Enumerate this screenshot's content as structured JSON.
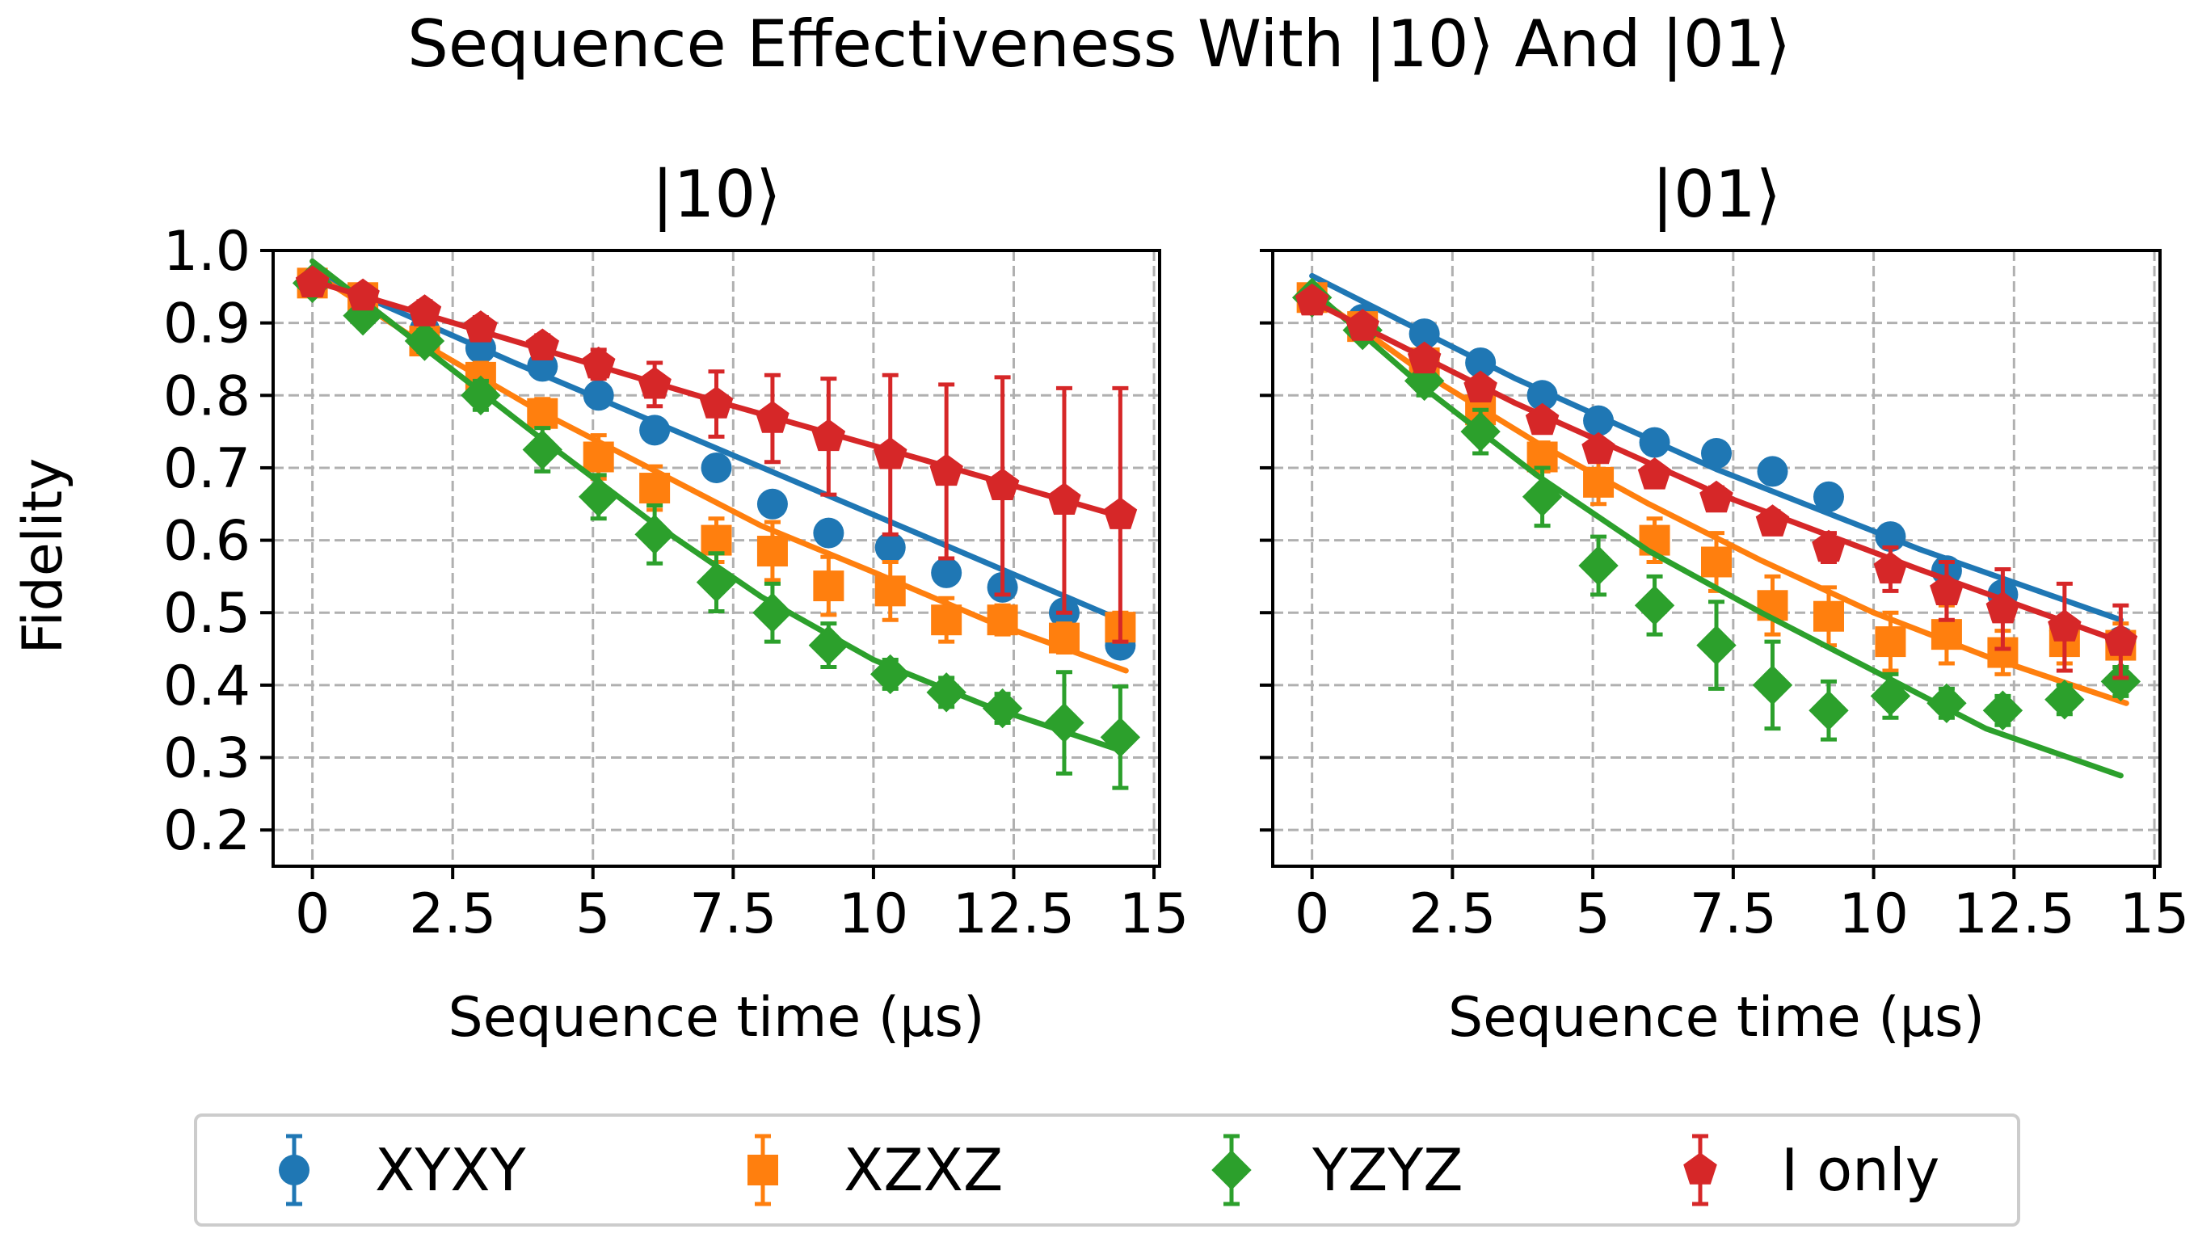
{
  "chart_data": {
    "type": "scatter",
    "title": "Sequence Effectiveness With |10⟩ And |01⟩",
    "ylabel": "Fidelity",
    "series_styles": [
      {
        "name": "XYXY",
        "color": "#1f77b4",
        "marker": "circle"
      },
      {
        "name": "XZXZ",
        "color": "#ff7f0e",
        "marker": "square"
      },
      {
        "name": "YZYZ",
        "color": "#2ca02c",
        "marker": "diamond"
      },
      {
        "name": "I only",
        "color": "#d62728",
        "marker": "pentagon"
      }
    ],
    "panels": [
      {
        "title": "|10⟩",
        "xlabel": "Sequence time (μs)",
        "xlim": [
          -0.7,
          15.1
        ],
        "ylim": [
          0.15,
          1.0
        ],
        "xticks": [
          0,
          2.5,
          5,
          7.5,
          10,
          12.5,
          15
        ],
        "xtick_labels": [
          "0",
          "2.5",
          "5",
          "7.5",
          "10",
          "12.5",
          "15"
        ],
        "yticks": [
          0.2,
          0.3,
          0.4,
          0.5,
          0.6,
          0.7,
          0.8,
          0.9,
          1.0
        ],
        "ytick_labels": [
          "0.2",
          "0.3",
          "0.4",
          "0.5",
          "0.6",
          "0.7",
          "0.8",
          "0.9",
          "1.0"
        ],
        "grid": true,
        "x": [
          0,
          0.9,
          2.0,
          3.0,
          4.1,
          5.1,
          6.1,
          7.2,
          8.2,
          9.2,
          10.3,
          11.3,
          12.3,
          13.4,
          14.4
        ],
        "series": [
          {
            "name": "XYXY",
            "y": [
              0.955,
              0.935,
              0.89,
              0.865,
              0.84,
              0.8,
              0.752,
              0.7,
              0.65,
              0.61,
              0.59,
              0.555,
              0.535,
              0.5,
              0.455
            ],
            "err": [
              0.005,
              0.005,
              0.008,
              0.008,
              0.008,
              0.008,
              0.01,
              0.01,
              0.01,
              0.01,
              0.012,
              0.012,
              0.012,
              0.012,
              0.012
            ],
            "fit": [
              [
                0,
                0.968
              ],
              [
                3.6,
                0.845
              ],
              [
                7.2,
                0.727
              ],
              [
                10.8,
                0.609
              ],
              [
                14.4,
                0.49
              ]
            ]
          },
          {
            "name": "XZXZ",
            "y": [
              0.955,
              0.935,
              0.875,
              0.825,
              0.775,
              0.715,
              0.672,
              0.6,
              0.585,
              0.537,
              0.53,
              0.49,
              0.49,
              0.465,
              0.48
            ],
            "err": [
              0.01,
              0.01,
              0.015,
              0.02,
              0.02,
              0.03,
              0.03,
              0.03,
              0.04,
              0.04,
              0.04,
              0.03,
              0.02,
              0.02,
              0.02
            ],
            "fit": [
              [
                0,
                0.97
              ],
              [
                2,
                0.87
              ],
              [
                4,
                0.78
              ],
              [
                6,
                0.7
              ],
              [
                8,
                0.62
              ],
              [
                10,
                0.556
              ],
              [
                12,
                0.49
              ],
              [
                14.5,
                0.42
              ]
            ]
          },
          {
            "name": "YZYZ",
            "y": [
              0.955,
              0.91,
              0.875,
              0.8,
              0.725,
              0.66,
              0.608,
              0.542,
              0.5,
              0.455,
              0.415,
              0.39,
              0.368,
              0.348,
              0.328
            ],
            "err": [
              0.01,
              0.01,
              0.015,
              0.02,
              0.03,
              0.03,
              0.04,
              0.04,
              0.04,
              0.03,
              0.02,
              0.02,
              0.02,
              0.07,
              0.07
            ],
            "fit": [
              [
                0,
                0.985
              ],
              [
                2,
                0.865
              ],
              [
                4,
                0.745
              ],
              [
                6,
                0.628
              ],
              [
                8,
                0.522
              ],
              [
                10,
                0.435
              ],
              [
                12,
                0.372
              ],
              [
                14.4,
                0.31
              ]
            ]
          },
          {
            "name": "I only",
            "y": [
              0.955,
              0.937,
              0.915,
              0.893,
              0.868,
              0.843,
              0.815,
              0.788,
              0.768,
              0.743,
              0.718,
              0.695,
              0.675,
              0.655,
              0.635
            ],
            "err": [
              0.01,
              0.01,
              0.015,
              0.015,
              0.015,
              0.02,
              0.03,
              0.045,
              0.06,
              0.08,
              0.11,
              0.12,
              0.15,
              0.155,
              0.175
            ],
            "fit": [
              [
                0,
                0.958
              ],
              [
                3.6,
                0.875
              ],
              [
                7.2,
                0.792
              ],
              [
                10.8,
                0.713
              ],
              [
                14.4,
                0.633
              ]
            ]
          }
        ]
      },
      {
        "title": "|01⟩",
        "xlabel": "Sequence time (μs)",
        "xlim": [
          -0.7,
          15.1
        ],
        "ylim": [
          0.15,
          1.0
        ],
        "xticks": [
          0,
          2.5,
          5,
          7.5,
          10,
          12.5,
          15
        ],
        "xtick_labels": [
          "0",
          "2.5",
          "5",
          "7.5",
          "10",
          "12.5",
          "15"
        ],
        "yticks": [
          0.2,
          0.3,
          0.4,
          0.5,
          0.6,
          0.7,
          0.8,
          0.9,
          1.0
        ],
        "ytick_labels": [
          "0.2",
          "0.3",
          "0.4",
          "0.5",
          "0.6",
          "0.7",
          "0.8",
          "0.9",
          "1.0"
        ],
        "grid": true,
        "x": [
          0,
          0.9,
          2.0,
          3.0,
          4.1,
          5.1,
          6.1,
          7.2,
          8.2,
          9.2,
          10.3,
          11.3,
          12.3,
          13.4,
          14.4
        ],
        "series": [
          {
            "name": "XYXY",
            "y": [
              0.935,
              0.905,
              0.885,
              0.845,
              0.8,
              0.765,
              0.735,
              0.72,
              0.695,
              0.66,
              0.605,
              0.558,
              0.525,
              0.475,
              0.46
            ],
            "err": [
              0.005,
              0.005,
              0.008,
              0.008,
              0.01,
              0.01,
              0.01,
              0.01,
              0.01,
              0.01,
              0.012,
              0.012,
              0.012,
              0.012,
              0.012
            ],
            "fit": [
              [
                0,
                0.965
              ],
              [
                3.6,
                0.824
              ],
              [
                7.2,
                0.698
              ],
              [
                10.8,
                0.588
              ],
              [
                14.4,
                0.49
              ]
            ]
          },
          {
            "name": "XZXZ",
            "y": [
              0.935,
              0.895,
              0.845,
              0.78,
              0.715,
              0.68,
              0.6,
              0.57,
              0.51,
              0.495,
              0.46,
              0.47,
              0.445,
              0.46,
              0.455
            ],
            "err": [
              0.01,
              0.01,
              0.015,
              0.02,
              0.02,
              0.03,
              0.03,
              0.04,
              0.04,
              0.04,
              0.04,
              0.04,
              0.03,
              0.03,
              0.03
            ],
            "fit": [
              [
                0,
                0.94
              ],
              [
                2,
                0.83
              ],
              [
                4,
                0.735
              ],
              [
                6,
                0.65
              ],
              [
                8,
                0.572
              ],
              [
                10,
                0.5
              ],
              [
                12,
                0.44
              ],
              [
                14.5,
                0.375
              ]
            ]
          },
          {
            "name": "YZYZ",
            "y": [
              0.935,
              0.89,
              0.82,
              0.75,
              0.66,
              0.565,
              0.51,
              0.455,
              0.4,
              0.365,
              0.385,
              0.375,
              0.365,
              0.38,
              0.405
            ],
            "err": [
              0.01,
              0.01,
              0.02,
              0.03,
              0.04,
              0.04,
              0.04,
              0.06,
              0.06,
              0.04,
              0.03,
              0.02,
              0.02,
              0.02,
              0.02
            ],
            "fit": [
              [
                0,
                0.945
              ],
              [
                2,
                0.81
              ],
              [
                4,
                0.69
              ],
              [
                6,
                0.585
              ],
              [
                8,
                0.5
              ],
              [
                10,
                0.42
              ],
              [
                12,
                0.34
              ],
              [
                14.4,
                0.275
              ]
            ]
          },
          {
            "name": "I only",
            "y": [
              0.93,
              0.895,
              0.85,
              0.81,
              0.765,
              0.725,
              0.69,
              0.658,
              0.625,
              0.59,
              0.56,
              0.53,
              0.505,
              0.48,
              0.46
            ],
            "err": [
              0.01,
              0.01,
              0.01,
              0.01,
              0.01,
              0.01,
              0.01,
              0.015,
              0.015,
              0.02,
              0.03,
              0.04,
              0.055,
              0.06,
              0.05
            ],
            "fit": [
              [
                0,
                0.93
              ],
              [
                3.6,
                0.79
              ],
              [
                7.2,
                0.665
              ],
              [
                10.8,
                0.56
              ],
              [
                14.4,
                0.46
              ]
            ]
          }
        ]
      }
    ]
  }
}
